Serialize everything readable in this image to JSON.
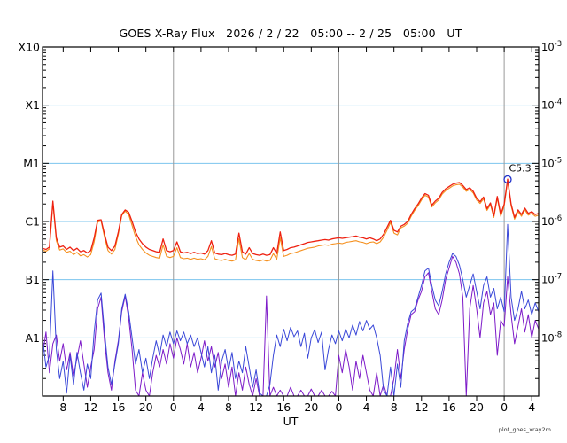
{
  "chart_data": {
    "type": "line",
    "title": "GOES X-Ray Flux   2026 / 2 / 22   05:00 -- 2 / 25   05:00   UT",
    "xlabel": "UT",
    "y_scale": "log",
    "y_log_top": -3,
    "y_log_bottom": -9,
    "x_hours_span": 72,
    "x_first_tick_hour": 3,
    "x_tick_step_hours": 4,
    "x_tick_labels": [
      "8",
      "12",
      "16",
      "20",
      "0",
      "4",
      "8",
      "12",
      "16",
      "20",
      "0",
      "4",
      "8",
      "12",
      "16",
      "20",
      "0",
      "4"
    ],
    "left_axis_labels": [
      "X10",
      "X1",
      "M1",
      "C1",
      "B1",
      "A1"
    ],
    "right_axis_exponents": [
      "-3",
      "-4",
      "-5",
      "-6",
      "-7",
      "-8"
    ],
    "gridline_log_levels": [
      -4,
      -5,
      -6,
      -7,
      -8
    ],
    "day_boundary_hours": [
      19,
      43,
      67
    ],
    "grid_on": true,
    "legend": "none",
    "annotation": {
      "text": "C5.3",
      "hour": 67.5,
      "log_value": -5.276
    },
    "colors": {
      "gridline": "#7cc4ee",
      "day_line": "#999999",
      "frame": "#000000",
      "marker_outline": "#2233cc",
      "tick": "#000000",
      "text": "#000000"
    },
    "series": [
      {
        "name": "xray-short-secondary",
        "color": "#7d1ac8",
        "width": 1.0,
        "step_hours": 0.5,
        "log_values": [
          -8.3,
          -7.9,
          -8.6,
          -8.1,
          -7.95,
          -8.4,
          -8.1,
          -8.55,
          -8.25,
          -8.65,
          -8.35,
          -8.05,
          -8.45,
          -8.85,
          -8.5,
          -8.2,
          -7.5,
          -7.3,
          -8.05,
          -8.6,
          -8.9,
          -8.4,
          -8.05,
          -7.55,
          -7.28,
          -7.65,
          -8.2,
          -8.9,
          -9.0,
          -8.6,
          -8.9,
          -9.0,
          -8.6,
          -8.3,
          -8.5,
          -8.2,
          -8.45,
          -8.1,
          -8.35,
          -8.0,
          -8.2,
          -8.45,
          -8.1,
          -8.5,
          -8.25,
          -8.6,
          -8.35,
          -8.05,
          -8.4,
          -8.15,
          -8.5,
          -8.25,
          -8.7,
          -8.45,
          -8.85,
          -8.5,
          -9.0,
          -8.6,
          -8.9,
          -8.5,
          -8.8,
          -9.0,
          -8.7,
          -9.0,
          -9.0,
          -7.28,
          -9.0,
          -8.85,
          -9.0,
          -8.9,
          -9.0,
          -9.0,
          -8.85,
          -9.0,
          -9.0,
          -8.9,
          -9.0,
          -9.0,
          -8.88,
          -9.0,
          -9.0,
          -8.9,
          -9.0,
          -9.0,
          -8.92,
          -9.0,
          -8.3,
          -8.6,
          -8.2,
          -8.5,
          -8.9,
          -8.4,
          -8.7,
          -8.3,
          -8.6,
          -8.9,
          -9.0,
          -8.6,
          -9.0,
          -8.8,
          -9.0,
          -9.0,
          -8.7,
          -8.2,
          -8.7,
          -8.2,
          -7.85,
          -7.6,
          -7.55,
          -7.35,
          -7.2,
          -6.95,
          -6.88,
          -7.2,
          -7.5,
          -7.6,
          -7.35,
          -7.0,
          -6.8,
          -6.6,
          -6.7,
          -6.9,
          -7.3,
          -9.0,
          -7.5,
          -7.1,
          -7.5,
          -8.0,
          -7.4,
          -7.2,
          -7.6,
          -7.4,
          -8.3,
          -7.7,
          -7.8,
          -6.95,
          -7.6,
          -8.1,
          -7.8,
          -7.5,
          -7.9,
          -7.6,
          -8.0,
          -7.7,
          -7.85
        ]
      },
      {
        "name": "xray-short-primary",
        "color": "#3a48d8",
        "width": 1.0,
        "step_hours": 0.5,
        "log_values": [
          -8.0,
          -8.5,
          -8.3,
          -6.85,
          -8.2,
          -8.7,
          -8.4,
          -8.95,
          -8.3,
          -8.8,
          -8.25,
          -8.6,
          -8.9,
          -8.45,
          -8.7,
          -7.9,
          -7.35,
          -7.23,
          -7.9,
          -8.5,
          -8.8,
          -8.45,
          -8.1,
          -7.5,
          -7.25,
          -7.55,
          -8.0,
          -8.45,
          -8.2,
          -8.6,
          -8.35,
          -8.7,
          -8.35,
          -8.05,
          -8.3,
          -7.95,
          -8.15,
          -7.9,
          -8.1,
          -7.88,
          -8.05,
          -7.9,
          -8.1,
          -7.95,
          -8.15,
          -8.0,
          -8.25,
          -8.5,
          -8.15,
          -8.6,
          -8.3,
          -8.9,
          -8.4,
          -8.2,
          -8.55,
          -8.25,
          -8.7,
          -8.4,
          -8.6,
          -8.15,
          -8.5,
          -8.85,
          -8.55,
          -8.95,
          -9.0,
          -9.0,
          -8.8,
          -8.3,
          -7.95,
          -8.15,
          -7.85,
          -8.05,
          -7.82,
          -7.98,
          -7.88,
          -8.15,
          -7.92,
          -8.35,
          -8.0,
          -7.86,
          -8.08,
          -7.9,
          -8.55,
          -8.2,
          -7.95,
          -8.1,
          -7.88,
          -8.05,
          -7.85,
          -8.0,
          -7.78,
          -7.95,
          -7.72,
          -7.88,
          -7.7,
          -7.85,
          -7.78,
          -8.0,
          -8.3,
          -8.9,
          -9.0,
          -8.5,
          -9.0,
          -8.45,
          -8.85,
          -8.05,
          -7.75,
          -7.55,
          -7.5,
          -7.3,
          -7.1,
          -6.85,
          -6.8,
          -7.1,
          -7.35,
          -7.45,
          -7.2,
          -6.9,
          -6.7,
          -6.55,
          -6.6,
          -6.75,
          -7.0,
          -7.3,
          -7.1,
          -6.9,
          -7.2,
          -7.5,
          -7.1,
          -6.95,
          -7.3,
          -7.15,
          -7.5,
          -7.3,
          -7.55,
          -6.05,
          -7.3,
          -7.7,
          -7.5,
          -7.2,
          -7.5,
          -7.35,
          -7.6,
          -7.4,
          -7.55
        ]
      },
      {
        "name": "xray-long-secondary",
        "color": "#f59120",
        "width": 1.1,
        "step_hours": 0.5,
        "log_values": [
          -6.49,
          -6.51,
          -6.47,
          -5.68,
          -6.33,
          -6.49,
          -6.47,
          -6.53,
          -6.51,
          -6.57,
          -6.53,
          -6.59,
          -6.57,
          -6.61,
          -6.57,
          -6.35,
          -6.01,
          -5.99,
          -6.27,
          -6.5,
          -6.56,
          -6.48,
          -6.22,
          -5.9,
          -5.82,
          -5.88,
          -6.07,
          -6.26,
          -6.4,
          -6.48,
          -6.54,
          -6.58,
          -6.6,
          -6.62,
          -6.63,
          -6.4,
          -6.6,
          -6.62,
          -6.6,
          -6.45,
          -6.62,
          -6.64,
          -6.63,
          -6.65,
          -6.63,
          -6.65,
          -6.64,
          -6.66,
          -6.6,
          -6.43,
          -6.64,
          -6.66,
          -6.67,
          -6.65,
          -6.67,
          -6.68,
          -6.66,
          -6.3,
          -6.62,
          -6.66,
          -6.55,
          -6.65,
          -6.67,
          -6.68,
          -6.66,
          -6.68,
          -6.67,
          -6.55,
          -6.65,
          -6.28,
          -6.6,
          -6.58,
          -6.55,
          -6.54,
          -6.52,
          -6.5,
          -6.48,
          -6.46,
          -6.45,
          -6.44,
          -6.42,
          -6.41,
          -6.4,
          -6.41,
          -6.39,
          -6.38,
          -6.37,
          -6.38,
          -6.36,
          -6.35,
          -6.34,
          -6.33,
          -6.35,
          -6.36,
          -6.38,
          -6.36,
          -6.35,
          -6.38,
          -6.35,
          -6.27,
          -6.15,
          -6.02,
          -6.2,
          -6.23,
          -6.11,
          -6.08,
          -6.03,
          -5.91,
          -5.81,
          -5.73,
          -5.63,
          -5.55,
          -5.58,
          -5.75,
          -5.68,
          -5.63,
          -5.53,
          -5.47,
          -5.43,
          -5.39,
          -5.37,
          -5.36,
          -5.41,
          -5.48,
          -5.45,
          -5.51,
          -5.63,
          -5.69,
          -5.61,
          -5.81,
          -5.71,
          -5.93,
          -5.6,
          -5.91,
          -5.73,
          -5.3,
          -5.73,
          -5.96,
          -5.83,
          -5.91,
          -5.8,
          -5.89,
          -5.86,
          -5.91,
          -5.89
        ]
      },
      {
        "name": "xray-long-primary",
        "color": "#ee2111",
        "width": 1.3,
        "step_hours": 0.5,
        "log_values": [
          -6.46,
          -6.48,
          -6.44,
          -5.65,
          -6.28,
          -6.44,
          -6.42,
          -6.48,
          -6.44,
          -6.5,
          -6.46,
          -6.52,
          -6.5,
          -6.54,
          -6.5,
          -6.28,
          -5.98,
          -5.97,
          -6.22,
          -6.44,
          -6.5,
          -6.42,
          -6.18,
          -5.88,
          -5.8,
          -5.84,
          -6.0,
          -6.18,
          -6.3,
          -6.38,
          -6.44,
          -6.48,
          -6.5,
          -6.52,
          -6.53,
          -6.3,
          -6.5,
          -6.52,
          -6.5,
          -6.35,
          -6.52,
          -6.54,
          -6.53,
          -6.55,
          -6.53,
          -6.55,
          -6.54,
          -6.56,
          -6.5,
          -6.33,
          -6.54,
          -6.56,
          -6.57,
          -6.55,
          -6.57,
          -6.58,
          -6.56,
          -6.2,
          -6.52,
          -6.56,
          -6.45,
          -6.55,
          -6.57,
          -6.58,
          -6.56,
          -6.58,
          -6.57,
          -6.45,
          -6.55,
          -6.18,
          -6.5,
          -6.48,
          -6.45,
          -6.44,
          -6.42,
          -6.4,
          -6.38,
          -6.36,
          -6.35,
          -6.34,
          -6.33,
          -6.32,
          -6.31,
          -6.32,
          -6.3,
          -6.29,
          -6.28,
          -6.29,
          -6.28,
          -6.27,
          -6.26,
          -6.25,
          -6.27,
          -6.28,
          -6.3,
          -6.28,
          -6.3,
          -6.33,
          -6.3,
          -6.22,
          -6.1,
          -5.98,
          -6.15,
          -6.18,
          -6.08,
          -6.05,
          -6.0,
          -5.88,
          -5.78,
          -5.7,
          -5.6,
          -5.52,
          -5.55,
          -5.72,
          -5.65,
          -5.6,
          -5.5,
          -5.44,
          -5.4,
          -5.36,
          -5.34,
          -5.33,
          -5.38,
          -5.45,
          -5.42,
          -5.48,
          -5.6,
          -5.66,
          -5.58,
          -5.78,
          -5.68,
          -5.9,
          -5.57,
          -5.88,
          -5.7,
          -5.27,
          -5.7,
          -5.93,
          -5.8,
          -5.88,
          -5.77,
          -5.86,
          -5.83,
          -5.88,
          -5.86
        ]
      }
    ],
    "watermark": "plot_goes_xray2m"
  }
}
